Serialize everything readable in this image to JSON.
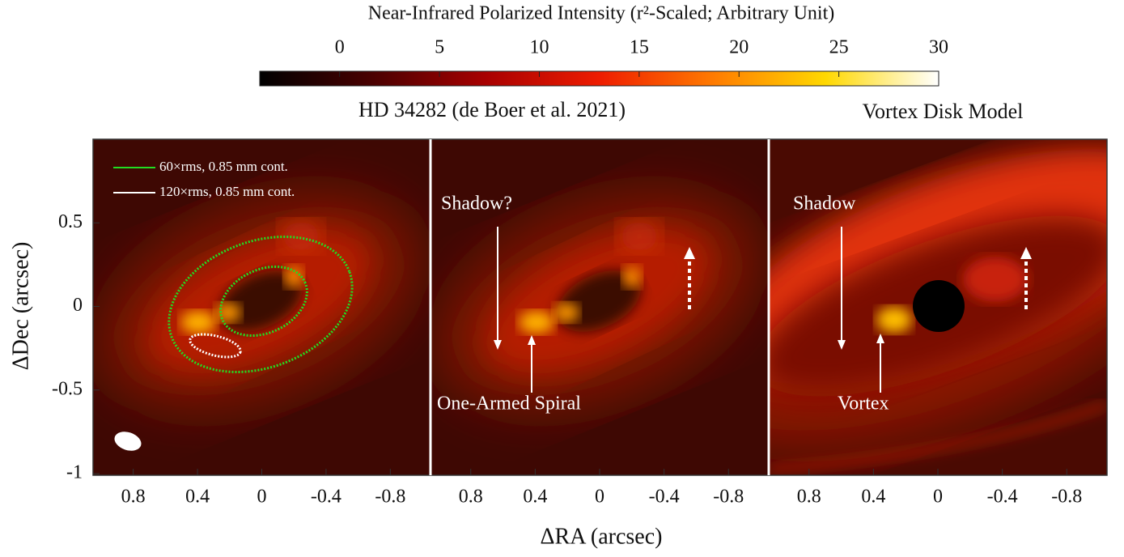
{
  "chart_data": {
    "type": "image",
    "title": "Near-Infrared Polarized Intensity (r²-Scaled; Arbitrary Unit)",
    "clim": [
      -4,
      30
    ],
    "cticks": [
      0,
      5,
      10,
      15,
      20,
      25,
      30
    ],
    "colormap": [
      "#000000",
      "#4a0000",
      "#a80000",
      "#ee1c00",
      "#ff7a00",
      "#ffd800",
      "#ffffff"
    ],
    "titles": [
      "HD 34282 (de Boer et al. 2021)",
      "Vortex Disk Model"
    ],
    "xlabel": "ΔRA (arcsec)",
    "ylabel": "ΔDec (arcsec)",
    "xlim": [
      1.05,
      -1.05
    ],
    "ylim": [
      -1,
      1
    ],
    "xticks": [
      0.8,
      0.4,
      0,
      -0.4,
      -0.8
    ],
    "yticks": [
      -1,
      -0.5,
      0,
      0.5
    ],
    "contours": [
      {
        "name": "60×rms, 0.85 mm cont.",
        "color": "#22dd22"
      },
      {
        "name": "120×rms, 0.85 mm cont.",
        "color": "#ffffff"
      }
    ],
    "annotations": [
      "Shadow?",
      "One-Armed Spiral",
      "Shadow",
      "Vortex"
    ]
  }
}
